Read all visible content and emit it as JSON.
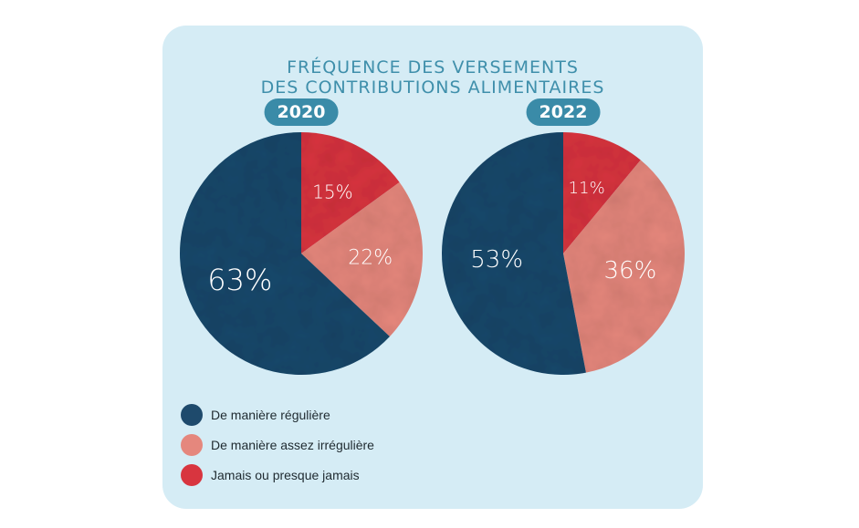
{
  "title_lines": [
    "FRÉQUENCE DES VERSEMENTS",
    "DES CONTRIBUTIONS ALIMENTAIRES"
  ],
  "colors": {
    "card_bg": "#d5ecf5",
    "title": "#3f8fab",
    "badge_bg": "#3a8ba8",
    "regular": "#1e4a6c",
    "irregular": "#e5877d",
    "never": "#d8353f"
  },
  "chart_data": [
    {
      "type": "pie",
      "year_label": "2020",
      "categories": [
        "De manière régulière",
        "De manière assez irrégulière",
        "Jamais ou presque jamais"
      ],
      "values": [
        63,
        22,
        15
      ],
      "value_labels": [
        "63%",
        "22%",
        "15%"
      ]
    },
    {
      "type": "pie",
      "year_label": "2022",
      "categories": [
        "De manière régulière",
        "De manière assez irrégulière",
        "Jamais ou presque jamais"
      ],
      "values": [
        53,
        36,
        11
      ],
      "value_labels": [
        "53%",
        "36%",
        "11%"
      ]
    }
  ],
  "legend": [
    {
      "label": "De manière régulière",
      "color": "#1e4a6c"
    },
    {
      "label": "De manière assez irrégulière",
      "color": "#e5877d"
    },
    {
      "label": "Jamais ou presque jamais",
      "color": "#d8353f"
    }
  ]
}
